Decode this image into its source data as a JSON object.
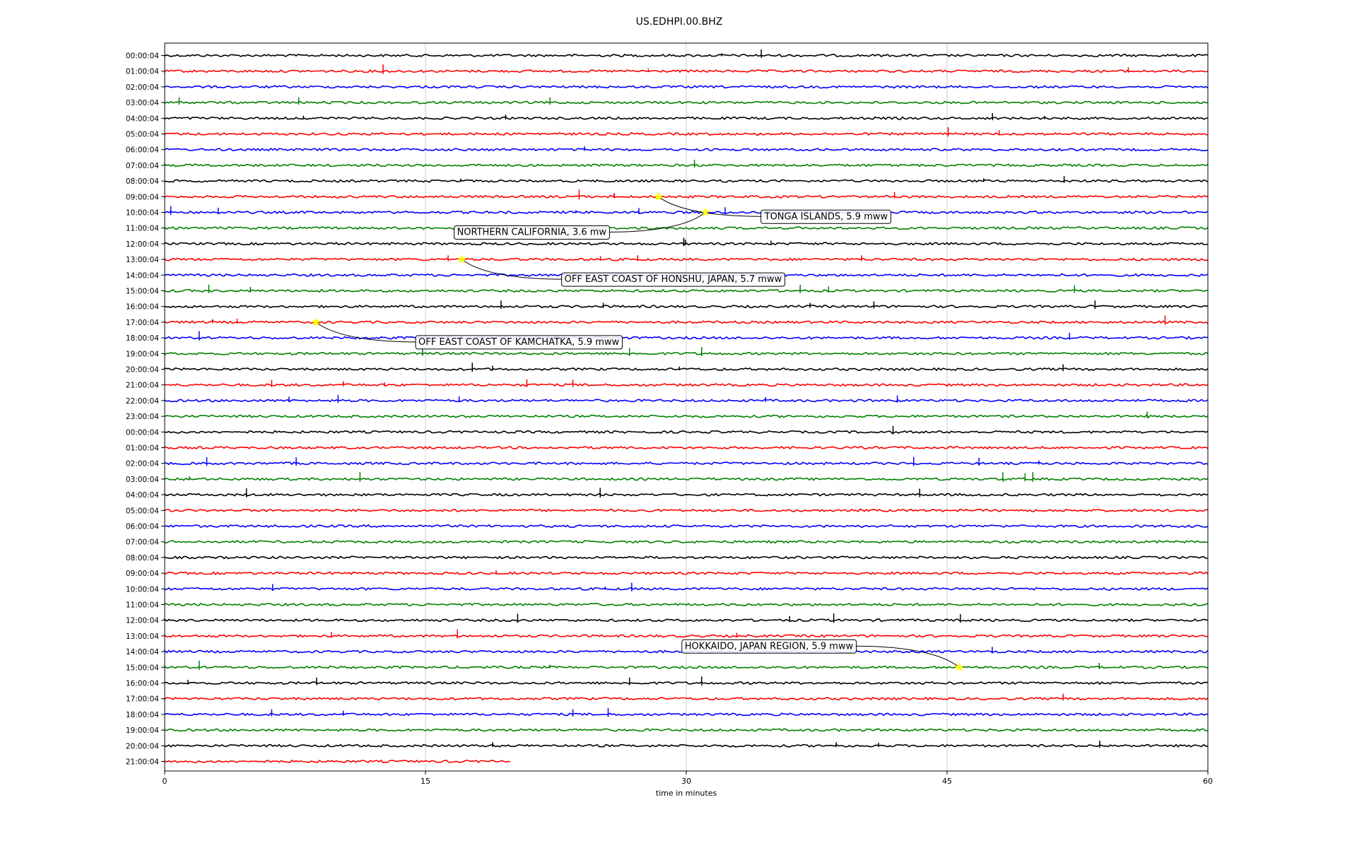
{
  "chart_data": {
    "type": "line",
    "title": "US.EDHPI.00.BHZ",
    "xlabel": "time in minutes",
    "ylabel": "",
    "xlim": [
      0,
      60
    ],
    "x_ticks": [
      "0",
      "15",
      "30",
      "45",
      "60"
    ],
    "grid": "vertical",
    "trace_colors": [
      "#000000",
      "#ff0000",
      "#0000ff",
      "#008000"
    ],
    "rows": [
      "00:00:04",
      "01:00:04",
      "02:00:04",
      "03:00:04",
      "04:00:04",
      "05:00:04",
      "06:00:04",
      "07:00:04",
      "08:00:04",
      "09:00:04",
      "10:00:04",
      "11:00:04",
      "12:00:04",
      "13:00:04",
      "14:00:04",
      "15:00:04",
      "16:00:04",
      "17:00:04",
      "18:00:04",
      "19:00:04",
      "20:00:04",
      "21:00:04",
      "22:00:04",
      "23:00:04",
      "00:00:04",
      "01:00:04",
      "02:00:04",
      "03:00:04",
      "04:00:04",
      "05:00:04",
      "06:00:04",
      "07:00:04",
      "08:00:04",
      "09:00:04",
      "10:00:04",
      "11:00:04",
      "12:00:04",
      "13:00:04",
      "14:00:04",
      "15:00:04",
      "16:00:04",
      "17:00:04",
      "18:00:04",
      "19:00:04",
      "20:00:04",
      "21:00:04"
    ],
    "last_row_end_minute": 19.9,
    "events": [
      {
        "label": "TONGA ISLANDS, 5.9 mww",
        "row": 9,
        "minute": 28.4
      },
      {
        "label": "NORTHERN CALIFORNIA, 3.6 mw",
        "row": 10,
        "minute": 31.1
      },
      {
        "label": "OFF EAST COAST OF HONSHU, JAPAN, 5.7 mww",
        "row": 13,
        "minute": 17.1
      },
      {
        "label": "OFF EAST COAST OF KAMCHATKA, 5.9 mww",
        "row": 17,
        "minute": 8.7
      },
      {
        "label": "HOKKAIDO, JAPAN REGION, 5.9 mww",
        "row": 39,
        "minute": 45.7
      }
    ],
    "event_marker_color": "#ffff00"
  }
}
